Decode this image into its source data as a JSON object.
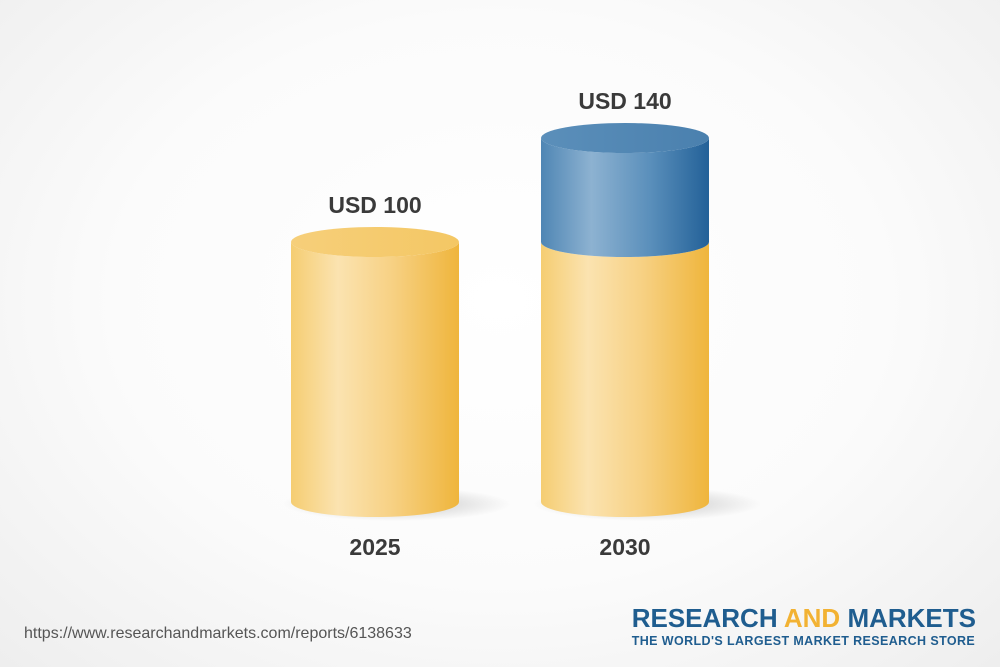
{
  "chart_data": {
    "type": "bar",
    "categories": [
      "2025",
      "2030"
    ],
    "values": [
      100,
      140
    ],
    "value_labels": [
      "USD 100",
      "USD 140"
    ],
    "increment_shown": 40,
    "colors": {
      "base": "#f2b733",
      "growth": "#2e6fa3"
    }
  },
  "footer": {
    "url": "https://www.researchandmarkets.com/reports/6138633",
    "brand_part1": "RESEARCH ",
    "brand_part2": "AND",
    "brand_part3": " MARKETS",
    "tagline": "THE WORLD'S LARGEST MARKET RESEARCH STORE"
  }
}
